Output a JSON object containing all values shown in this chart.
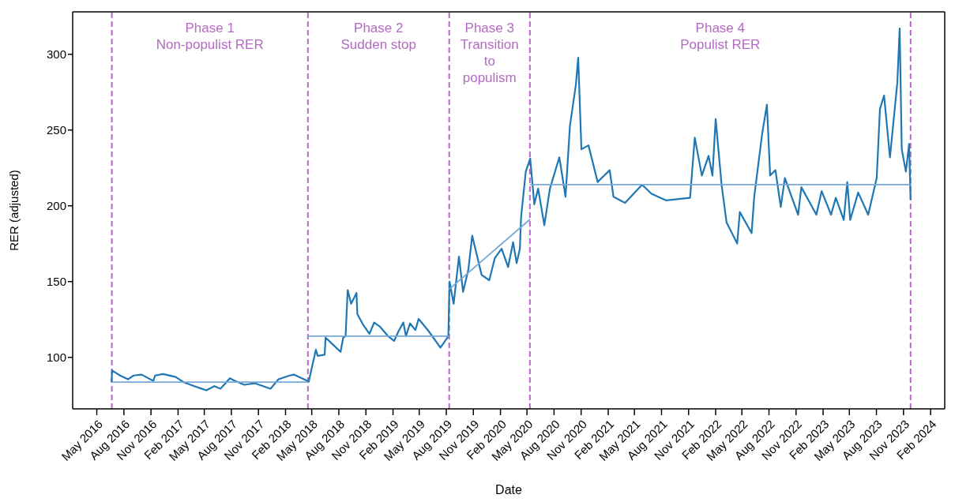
{
  "chart_data": {
    "type": "line",
    "xlabel": "Date",
    "ylabel": "RER (adjusted)",
    "xlim": [
      "2016-02-09",
      "2024-03-20"
    ],
    "ylim": [
      66,
      328
    ],
    "yticks": [
      100,
      150,
      200,
      250,
      300
    ],
    "xticks": [
      {
        "value": "2016-05-01",
        "label": "May 2016"
      },
      {
        "value": "2016-08-01",
        "label": "Aug 2016"
      },
      {
        "value": "2016-11-01",
        "label": "Nov 2016"
      },
      {
        "value": "2017-02-01",
        "label": "Feb 2017"
      },
      {
        "value": "2017-05-01",
        "label": "May 2017"
      },
      {
        "value": "2017-08-01",
        "label": "Aug 2017"
      },
      {
        "value": "2017-11-01",
        "label": "Nov 2017"
      },
      {
        "value": "2018-02-01",
        "label": "Feb 2018"
      },
      {
        "value": "2018-05-01",
        "label": "May 2018"
      },
      {
        "value": "2018-08-01",
        "label": "Aug 2018"
      },
      {
        "value": "2018-11-01",
        "label": "Nov 2018"
      },
      {
        "value": "2019-02-01",
        "label": "Feb 2019"
      },
      {
        "value": "2019-05-01",
        "label": "May 2019"
      },
      {
        "value": "2019-08-01",
        "label": "Aug 2019"
      },
      {
        "value": "2019-11-01",
        "label": "Nov 2019"
      },
      {
        "value": "2020-02-01",
        "label": "Feb 2020"
      },
      {
        "value": "2020-05-01",
        "label": "May 2020"
      },
      {
        "value": "2020-08-01",
        "label": "Aug 2020"
      },
      {
        "value": "2020-11-01",
        "label": "Nov 2020"
      },
      {
        "value": "2021-02-01",
        "label": "Feb 2021"
      },
      {
        "value": "2021-05-01",
        "label": "May 2021"
      },
      {
        "value": "2021-08-01",
        "label": "Aug 2021"
      },
      {
        "value": "2021-11-01",
        "label": "Nov 2021"
      },
      {
        "value": "2022-02-01",
        "label": "Feb 2022"
      },
      {
        "value": "2022-05-01",
        "label": "May 2022"
      },
      {
        "value": "2022-08-01",
        "label": "Aug 2022"
      },
      {
        "value": "2022-11-01",
        "label": "Nov 2022"
      },
      {
        "value": "2023-02-01",
        "label": "Feb 2023"
      },
      {
        "value": "2023-05-01",
        "label": "May 2023"
      },
      {
        "value": "2023-08-01",
        "label": "Aug 2023"
      },
      {
        "value": "2023-11-01",
        "label": "Nov 2023"
      },
      {
        "value": "2024-02-01",
        "label": "Feb 2024"
      }
    ],
    "series": [
      {
        "color": "#1f77b4",
        "x": [
          "2016-06-20",
          "2016-06-22",
          "2016-07-19",
          "2016-08-15",
          "2016-09-03",
          "2016-09-30",
          "2016-11-09",
          "2016-11-15",
          "2016-12-12",
          "2017-01-24",
          "2017-02-20",
          "2017-03-28",
          "2017-05-08",
          "2017-06-04",
          "2017-06-25",
          "2017-07-27",
          "2017-08-13",
          "2017-09-14",
          "2017-10-19",
          "2017-12-12",
          "2018-01-08",
          "2018-02-15",
          "2018-03-01",
          "2018-04-16",
          "2018-04-21",
          "2018-04-30",
          "2018-05-15",
          "2018-05-21",
          "2018-06-14",
          "2018-06-17",
          "2018-07-10",
          "2018-08-07",
          "2018-08-16",
          "2018-08-24",
          "2018-08-31",
          "2018-09-12",
          "2018-09-30",
          "2018-10-03",
          "2018-10-22",
          "2018-11-13",
          "2018-11-29",
          "2018-12-19",
          "2019-01-16",
          "2019-02-05",
          "2019-02-20",
          "2019-03-08",
          "2019-03-17",
          "2019-03-31",
          "2019-04-18",
          "2019-04-29",
          "2019-06-02",
          "2019-07-12",
          "2019-08-08",
          "2019-08-12",
          "2019-08-26",
          "2019-09-13",
          "2019-09-27",
          "2019-10-15",
          "2019-10-28",
          "2019-11-29",
          "2019-12-25",
          "2020-01-13",
          "2020-02-05",
          "2020-02-27",
          "2020-03-15",
          "2020-03-27",
          "2020-04-07",
          "2020-04-11",
          "2020-04-27",
          "2020-05-12",
          "2020-05-26",
          "2020-06-08",
          "2020-06-29",
          "2020-07-18",
          "2020-08-19",
          "2020-09-09",
          "2020-09-24",
          "2020-10-14",
          "2020-10-22",
          "2020-11-02",
          "2020-11-26",
          "2020-12-27",
          "2021-02-06",
          "2021-02-19",
          "2021-03-30",
          "2021-05-27",
          "2021-06-28",
          "2021-08-16",
          "2021-11-06",
          "2021-11-22",
          "2021-12-16",
          "2022-01-08",
          "2022-01-21",
          "2022-02-01",
          "2022-02-21",
          "2022-03-10",
          "2022-04-15",
          "2022-04-24",
          "2022-06-03",
          "2022-06-12",
          "2022-07-09",
          "2022-07-25",
          "2022-08-05",
          "2022-08-23",
          "2022-09-10",
          "2022-09-24",
          "2022-11-08",
          "2022-11-19",
          "2023-01-09",
          "2023-01-27",
          "2023-02-28",
          "2023-03-16",
          "2023-04-12",
          "2023-04-24",
          "2023-05-04",
          "2023-05-31",
          "2023-07-04",
          "2023-08-02",
          "2023-08-13",
          "2023-08-27",
          "2023-09-16",
          "2023-10-11",
          "2023-10-19",
          "2023-10-26",
          "2023-11-09",
          "2023-11-20",
          "2023-11-25"
        ],
        "values": [
          83.6,
          91.3,
          88,
          85.5,
          88,
          88.6,
          84.5,
          88,
          89,
          87,
          83.6,
          81,
          78.2,
          81,
          79.3,
          86.2,
          84.5,
          81.9,
          82.9,
          79.3,
          85.5,
          88,
          88.6,
          84.5,
          84,
          92,
          105,
          101,
          101.7,
          113,
          108.8,
          103.6,
          113,
          114,
          144.4,
          135.4,
          142.5,
          128.5,
          121.7,
          115.5,
          123,
          120.2,
          113.8,
          110.9,
          117.3,
          123,
          114,
          122.4,
          118,
          125.4,
          117.3,
          106.4,
          113.8,
          150,
          135.4,
          166.5,
          143.2,
          157.9,
          180.3,
          154.4,
          150.9,
          165.6,
          171.7,
          159.6,
          176,
          162.2,
          171.7,
          192.4,
          222.6,
          231.2,
          201,
          211.4,
          187.2,
          211.4,
          232,
          206,
          252.8,
          279.6,
          297.8,
          237.3,
          239.9,
          215.7,
          223.5,
          206,
          201.9,
          213.9,
          207.9,
          203.6,
          205.3,
          245,
          220,
          233,
          220,
          257.2,
          214,
          189,
          175.1,
          195.9,
          182,
          206,
          247.7,
          266.7,
          220,
          223.5,
          199.3,
          218.3,
          194.1,
          212.3,
          194.1,
          209.7,
          194.1,
          205.3,
          190.7,
          215.7,
          190.7,
          208.8,
          194.1,
          218.3,
          264,
          272.7,
          232,
          281.3,
          317,
          237.3,
          222.6,
          240.8,
          204
        ]
      },
      {
        "color": "#74a9d8",
        "x": [
          "2016-06-21",
          "2018-04-18"
        ],
        "values": [
          83.6,
          83.6
        ]
      },
      {
        "color": "#74a9d8",
        "x": [
          "2018-04-18",
          "2019-08-11"
        ],
        "values": [
          114,
          114
        ]
      },
      {
        "color": "#74a9d8",
        "x": [
          "2019-08-11",
          "2020-05-11"
        ],
        "values": [
          145,
          191
        ]
      },
      {
        "color": "#74a9d8",
        "x": [
          "2020-05-11",
          "2023-11-25"
        ],
        "values": [
          214,
          214
        ]
      }
    ],
    "ref_lines": [
      {
        "axis": "x",
        "value": "2016-06-21",
        "color": "#b36ac2",
        "line_style": "dashed"
      },
      {
        "axis": "x",
        "value": "2018-04-18",
        "color": "#b36ac2",
        "line_style": "dashed"
      },
      {
        "axis": "x",
        "value": "2019-08-11",
        "color": "#b36ac2",
        "line_style": "dashed"
      },
      {
        "axis": "x",
        "value": "2020-05-11",
        "color": "#b36ac2",
        "line_style": "dashed"
      },
      {
        "axis": "x",
        "value": "2023-11-25",
        "color": "#b36ac2",
        "line_style": "dashed"
      }
    ],
    "annotations": [
      "Phase 1\nNon-populist RER",
      "Phase 2\nSudden stop",
      "Phase 3\nTransition\nto\npopulism",
      "Phase 4\nPopulist RER"
    ]
  }
}
